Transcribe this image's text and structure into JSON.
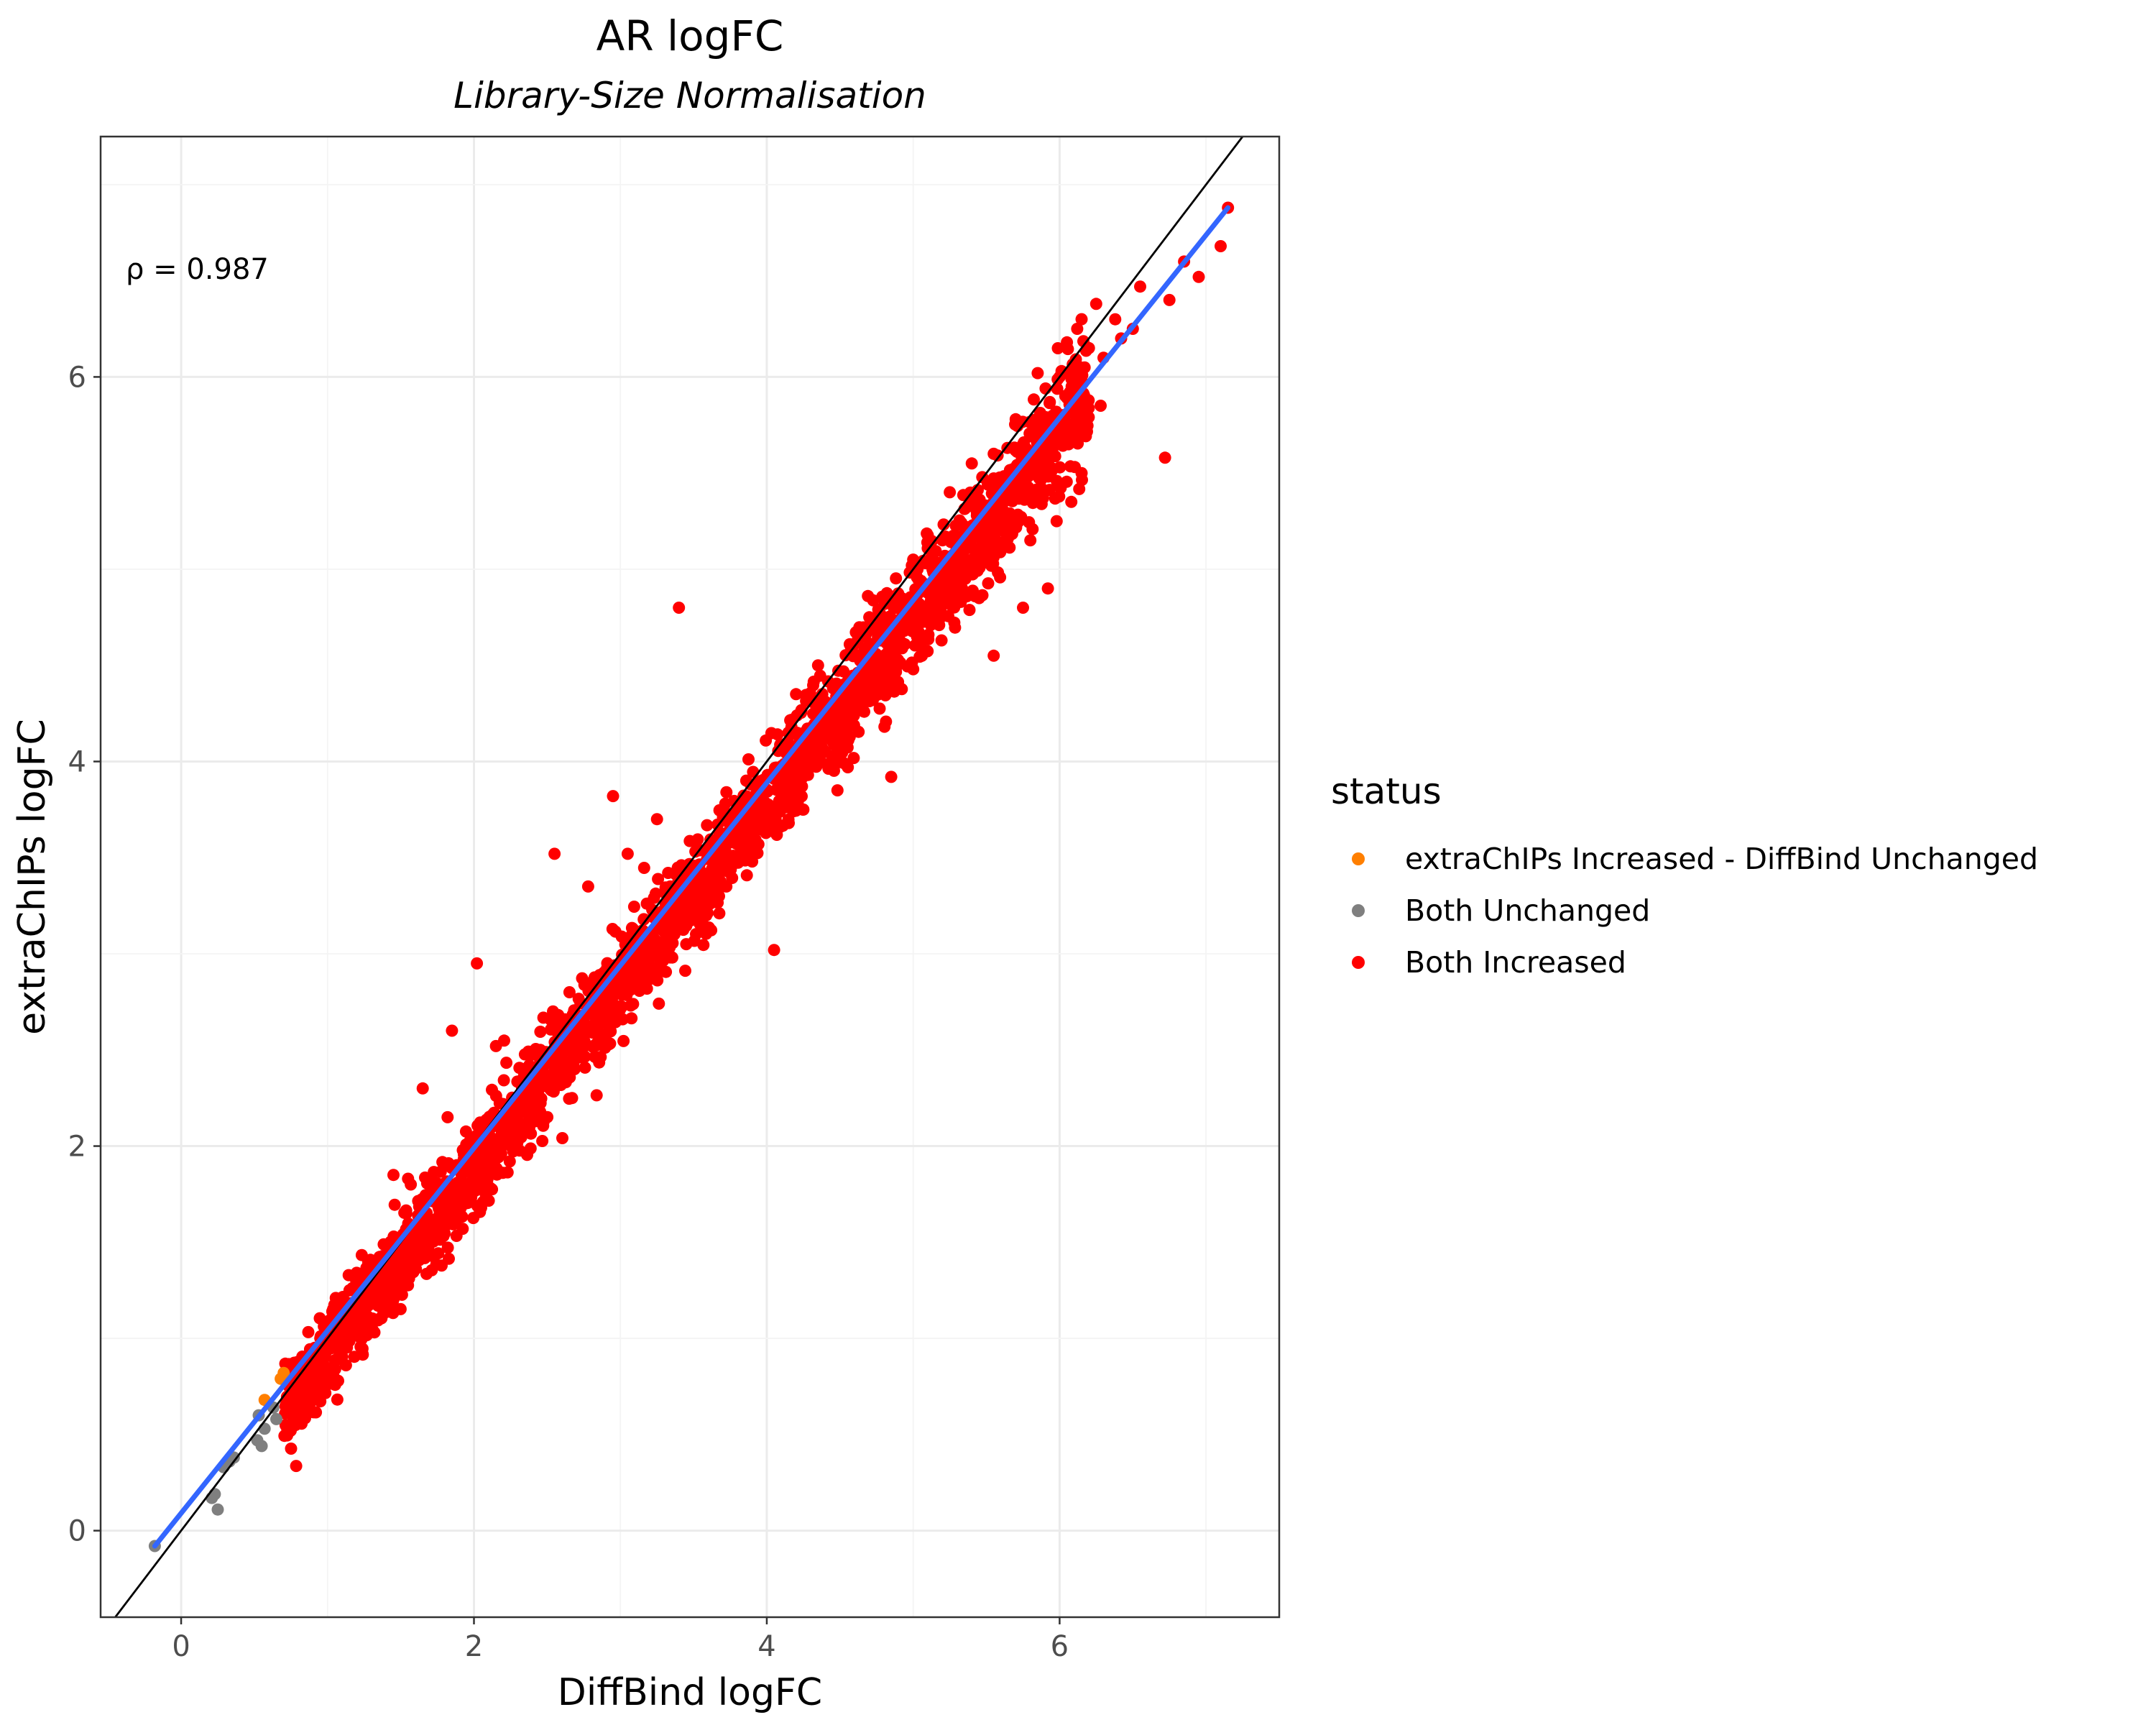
{
  "chart_data": {
    "type": "scatter",
    "title": "AR logFC",
    "subtitle": "Library-Size Normalisation",
    "xlabel": "DiffBind logFC",
    "ylabel": "extraChIPs logFC",
    "xlim": [
      -0.55,
      7.5
    ],
    "ylim": [
      -0.45,
      7.25
    ],
    "x_ticks": [
      0,
      2,
      4,
      6
    ],
    "y_ticks": [
      0,
      2,
      4,
      6
    ],
    "grid": true,
    "annotation": "ρ = 0.987",
    "legend": {
      "title": "status",
      "placement": "right",
      "entries": [
        {
          "label": "extraChIPs Increased - DiffBind Unchanged",
          "color": "#FF7F00"
        },
        {
          "label": "Both Unchanged",
          "color": "#7F7F7F"
        },
        {
          "label": "Both Increased",
          "color": "#FF0000"
        }
      ]
    },
    "reference_line": {
      "type": "identity",
      "slope": 1,
      "intercept": 0,
      "color": "#000000"
    },
    "fit_line": {
      "type": "linear",
      "x": [
        -0.18,
        7.15
      ],
      "y": [
        -0.08,
        6.88
      ],
      "color": "#3366FF"
    },
    "series": [
      {
        "name": "extraChIPs Increased - DiffBind Unchanged",
        "color": "#FF7F00",
        "points": [
          [
            0.57,
            0.68
          ],
          [
            0.68,
            0.79
          ],
          [
            0.7,
            0.82
          ]
        ]
      },
      {
        "name": "Both Unchanged",
        "color": "#7F7F7F",
        "points": [
          [
            -0.18,
            -0.08
          ],
          [
            0.21,
            0.17
          ],
          [
            0.25,
            0.11
          ],
          [
            0.23,
            0.19
          ],
          [
            0.29,
            0.33
          ],
          [
            0.33,
            0.36
          ],
          [
            0.36,
            0.38
          ],
          [
            0.52,
            0.47
          ],
          [
            0.53,
            0.6
          ],
          [
            0.55,
            0.44
          ],
          [
            0.57,
            0.53
          ],
          [
            0.63,
            0.64
          ],
          [
            0.65,
            0.58
          ]
        ]
      },
      {
        "name": "Both Increased",
        "color": "#FF0000",
        "band": {
          "x_min": 0.7,
          "x_max": 6.2,
          "slope": 0.955,
          "intercept": -0.03,
          "sd": 0.15,
          "n": 2600
        },
        "points": [
          [
            7.15,
            6.88
          ],
          [
            7.1,
            6.68
          ],
          [
            6.95,
            6.52
          ],
          [
            6.85,
            6.6
          ],
          [
            6.75,
            6.4
          ],
          [
            6.55,
            6.47
          ],
          [
            6.5,
            6.25
          ],
          [
            6.42,
            6.2
          ],
          [
            6.38,
            6.3
          ],
          [
            6.3,
            6.1
          ],
          [
            6.25,
            6.38
          ],
          [
            6.2,
            6.15
          ],
          [
            6.12,
            6.25
          ],
          [
            6.05,
            6.18
          ],
          [
            6.0,
            6.0
          ],
          [
            5.85,
            6.02
          ],
          [
            5.7,
            5.78
          ],
          [
            5.55,
            5.6
          ],
          [
            5.4,
            5.55
          ],
          [
            6.72,
            5.58
          ],
          [
            6.28,
            5.85
          ],
          [
            6.15,
            5.5
          ],
          [
            6.08,
            5.35
          ],
          [
            5.95,
            5.62
          ],
          [
            5.98,
            5.25
          ],
          [
            5.92,
            4.9
          ],
          [
            5.8,
            5.15
          ],
          [
            5.75,
            4.8
          ],
          [
            5.55,
            4.55
          ],
          [
            5.45,
            4.85
          ],
          [
            5.25,
            5.4
          ],
          [
            5.2,
            4.95
          ],
          [
            5.0,
            4.48
          ],
          [
            4.85,
            4.68
          ],
          [
            4.85,
            3.92
          ],
          [
            4.4,
            4.05
          ],
          [
            4.38,
            4.12
          ],
          [
            4.25,
            3.75
          ],
          [
            4.2,
            4.35
          ],
          [
            4.15,
            3.68
          ],
          [
            4.1,
            3.78
          ],
          [
            4.05,
            3.02
          ],
          [
            3.9,
            3.48
          ],
          [
            3.65,
            3.3
          ],
          [
            3.45,
            3.05
          ],
          [
            3.4,
            4.8
          ],
          [
            3.25,
            3.7
          ],
          [
            3.05,
            3.52
          ],
          [
            2.95,
            3.82
          ],
          [
            2.9,
            2.65
          ],
          [
            2.78,
            3.35
          ],
          [
            2.55,
            3.52
          ],
          [
            2.5,
            2.35
          ],
          [
            2.15,
            2.52
          ],
          [
            2.02,
            2.95
          ],
          [
            1.85,
            2.6
          ],
          [
            1.82,
            2.15
          ],
          [
            1.65,
            2.3
          ],
          [
            1.9,
            1.65
          ],
          [
            1.95,
            1.8
          ],
          [
            2.08,
            1.75
          ],
          [
            1.55,
            1.83
          ],
          [
            1.45,
            1.85
          ],
          [
            1.15,
            1.25
          ],
          [
            1.35,
            1.1
          ],
          [
            1.5,
            1.35
          ],
          [
            0.78,
            0.72
          ],
          [
            0.82,
            0.85
          ],
          [
            0.92,
            0.88
          ],
          [
            1.0,
            0.95
          ],
          [
            1.1,
            1.05
          ],
          [
            1.25,
            1.2
          ],
          [
            1.5,
            1.5
          ],
          [
            2.5,
            2.45
          ],
          [
            2.8,
            2.85
          ],
          [
            3.0,
            2.95
          ],
          [
            3.2,
            3.05
          ],
          [
            3.6,
            3.55
          ],
          [
            4.35,
            4.5
          ],
          [
            4.5,
            4.3
          ],
          [
            4.7,
            4.75
          ],
          [
            5.0,
            5.05
          ],
          [
            5.2,
            5.15
          ],
          [
            5.35,
            5.1
          ],
          [
            5.55,
            5.35
          ],
          [
            5.68,
            5.52
          ],
          [
            5.75,
            5.65
          ]
        ]
      }
    ]
  }
}
